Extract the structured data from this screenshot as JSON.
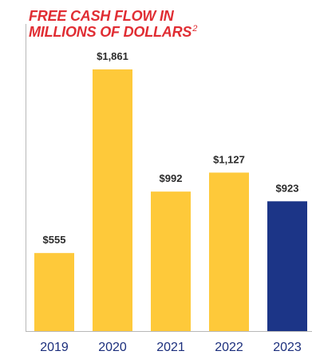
{
  "chart_data": {
    "type": "bar",
    "title_line1": "FREE CASH FLOW IN",
    "title_line2": "MILLIONS OF DOLLARS",
    "title_superscript": "2",
    "categories": [
      "2019",
      "2020",
      "2021",
      "2022",
      "2023"
    ],
    "values": [
      555,
      1861,
      992,
      1127,
      923
    ],
    "value_labels": [
      "$555",
      "$1,861",
      "$992",
      "$1,127",
      "$923"
    ],
    "bar_colors": [
      "#fec93a",
      "#fec93a",
      "#fec93a",
      "#fec93a",
      "#1c3587"
    ],
    "title_color": "#e02d33",
    "axis_label_color": "#1b2e7c",
    "ylim": [
      0,
      1861
    ],
    "grid": false,
    "legend": "none"
  }
}
